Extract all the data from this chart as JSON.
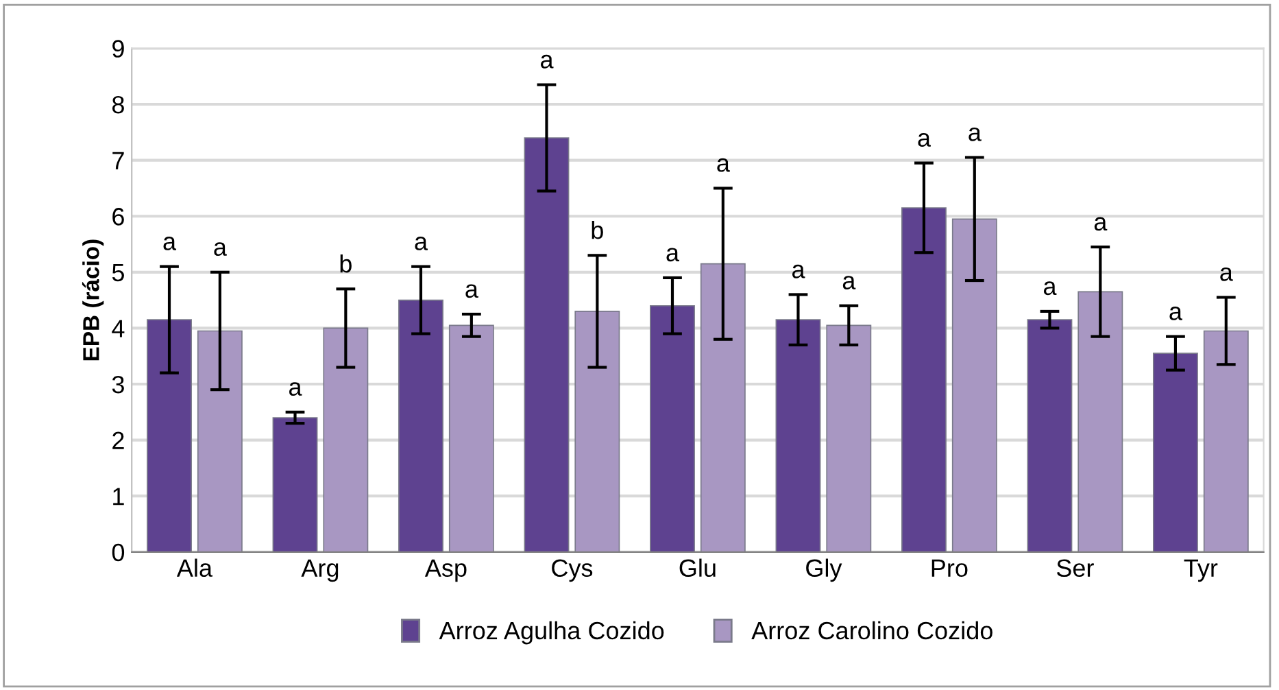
{
  "chart_data": {
    "type": "bar",
    "ylabel": "EPB (rácio)",
    "categories": [
      "Ala",
      "Arg",
      "Asp",
      "Cys",
      "Glu",
      "Gly",
      "Pro",
      "Ser",
      "Tyr"
    ],
    "series": [
      {
        "name": "Arroz Agulha Cozido",
        "color": "#5e4290",
        "values": [
          4.15,
          2.4,
          4.5,
          7.4,
          4.4,
          4.15,
          6.15,
          4.15,
          3.55
        ],
        "errors": [
          0.95,
          0.1,
          0.6,
          0.95,
          0.5,
          0.45,
          0.8,
          0.15,
          0.3
        ]
      },
      {
        "name": "Arroz Carolino Cozido",
        "color": "#a897c2",
        "values": [
          3.95,
          4.0,
          4.05,
          4.3,
          5.15,
          4.05,
          5.95,
          4.65,
          3.95
        ],
        "errors": [
          1.05,
          0.7,
          0.2,
          1.0,
          1.35,
          0.35,
          1.1,
          0.8,
          0.6
        ]
      }
    ],
    "annotations": [
      "a",
      "a",
      "a",
      "b",
      "a",
      "a",
      "a",
      "b",
      "a",
      "a",
      "a",
      "a",
      "a",
      "a",
      "a",
      "a",
      "a",
      "a"
    ],
    "ylim": [
      0,
      9
    ],
    "yticks": [
      0,
      1,
      2,
      3,
      4,
      5,
      6,
      7,
      8,
      9
    ],
    "grid": "y",
    "legend": "bottom"
  }
}
